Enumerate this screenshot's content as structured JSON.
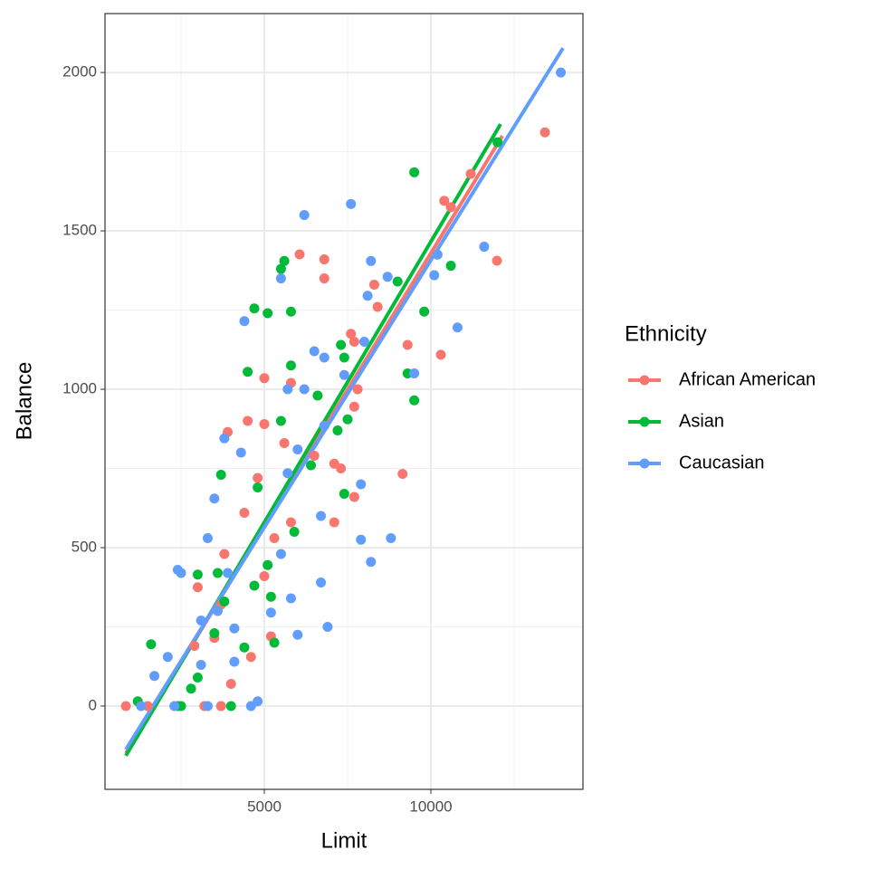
{
  "chart_data": {
    "type": "scatter",
    "x_label": "Limit",
    "y_label": "Balance",
    "legend_title": "Ethnicity",
    "legend_position": "right",
    "grid": true,
    "xlim": [
      217,
      14565
    ],
    "xticks": [
      5000,
      10000
    ],
    "xminor_ticks": [
      2500,
      7500,
      12500
    ],
    "ylim": [
      -263,
      2186
    ],
    "yticks": [
      0,
      500,
      1000,
      1500,
      2000
    ],
    "yminor_ticks": [
      250,
      750,
      1250,
      1750
    ],
    "series": [
      {
        "name": "African American",
        "color": "#F8766D",
        "x": [
          843,
          1500,
          13424,
          11984,
          11196,
          10400,
          10600,
          10299,
          9300,
          9150,
          6060,
          6800,
          6800,
          8300,
          8400,
          7600,
          7700,
          7800,
          7700,
          5000,
          5000,
          4500,
          3900,
          7100,
          7300,
          7700,
          7100,
          5800,
          5800,
          5600,
          4800,
          4400,
          3800,
          3700,
          3000,
          2900,
          3500,
          4000,
          5200,
          4600,
          3200,
          3700,
          5300,
          6500,
          5000
        ],
        "values": [
          0,
          0,
          1811,
          1406,
          1680,
          1595,
          1575,
          1109,
          1140,
          733,
          1426,
          1410,
          1350,
          1330,
          1260,
          1175,
          1150,
          1000,
          945,
          1035,
          890,
          900,
          865,
          765,
          750,
          660,
          580,
          580,
          1020,
          830,
          720,
          610,
          480,
          320,
          375,
          190,
          215,
          70,
          220,
          155,
          0,
          0,
          530,
          790,
          410
        ],
        "fit": {
          "x": [
            843,
            12147
          ],
          "values": [
            -149,
            1800
          ]
        }
      },
      {
        "name": "Asian",
        "color": "#00BA38",
        "x": [
          1200,
          1600,
          2500,
          3000,
          3600,
          3700,
          4500,
          4700,
          5100,
          5500,
          5600,
          5800,
          5800,
          7300,
          7400,
          7200,
          7500,
          7400,
          9000,
          9300,
          9500,
          9500,
          9800,
          10600,
          12000,
          5500,
          5900,
          5300,
          4000,
          3500,
          3800,
          4400,
          4700,
          5200,
          5100,
          6600,
          6400,
          2800,
          3000,
          4800,
          2400
        ],
        "values": [
          15,
          195,
          0,
          415,
          420,
          730,
          1055,
          1255,
          1240,
          1380,
          1405,
          1245,
          1075,
          1140,
          1100,
          870,
          905,
          670,
          1340,
          1050,
          1685,
          965,
          1245,
          1390,
          1780,
          900,
          550,
          200,
          0,
          230,
          330,
          185,
          380,
          345,
          445,
          980,
          760,
          55,
          90,
          690,
          0
        ],
        "fit": {
          "x": [
            843,
            12092
          ],
          "values": [
            -157,
            1837
          ]
        }
      },
      {
        "name": "Caucasian",
        "color": "#619CFF",
        "x": [
          13900,
          11600,
          10800,
          10200,
          10100,
          9500,
          8800,
          8200,
          7900,
          7900,
          8200,
          8700,
          8100,
          8000,
          7600,
          6200,
          5500,
          4400,
          7400,
          6500,
          6800,
          6800,
          6200,
          5700,
          6000,
          6900,
          6000,
          6700,
          5800,
          5200,
          4800,
          4600,
          3900,
          3500,
          3800,
          4300,
          5500,
          2300,
          2100,
          1700,
          2500,
          2400,
          3100,
          3100,
          3300,
          3300,
          4100,
          4100,
          3600,
          1300,
          5700,
          6700
        ],
        "values": [
          2000,
          1450,
          1195,
          1425,
          1360,
          1050,
          530,
          455,
          525,
          700,
          1405,
          1355,
          1295,
          1150,
          1585,
          1550,
          1350,
          1215,
          1045,
          1120,
          1100,
          885,
          1000,
          1000,
          810,
          250,
          225,
          390,
          340,
          295,
          15,
          0,
          420,
          655,
          845,
          800,
          480,
          0,
          155,
          95,
          420,
          430,
          270,
          130,
          530,
          0,
          140,
          245,
          300,
          0,
          735,
          600
        ],
        "fit": {
          "x": [
            843,
            13967
          ],
          "values": [
            -137,
            2077
          ]
        }
      }
    ]
  }
}
